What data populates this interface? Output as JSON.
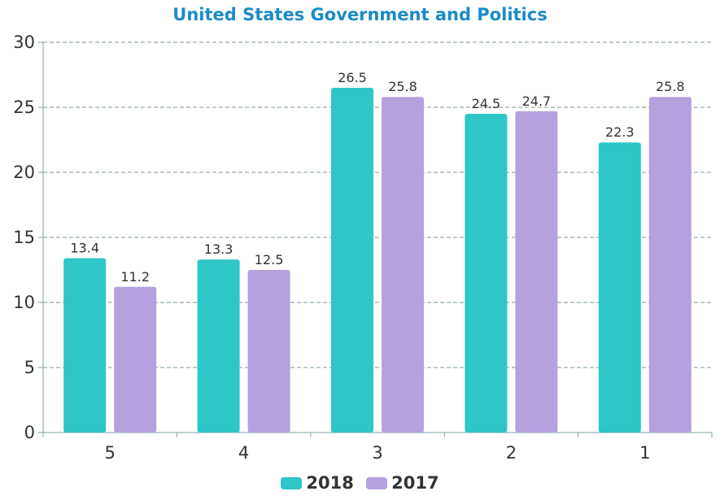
{
  "chart_data": {
    "type": "bar",
    "title": "United States Government and Politics",
    "categories": [
      "5",
      "4",
      "3",
      "2",
      "1"
    ],
    "series": [
      {
        "name": "2018",
        "color": "#2ec6c6",
        "values": [
          13.4,
          13.3,
          26.5,
          24.5,
          22.3
        ]
      },
      {
        "name": "2017",
        "color": "#b5a1de",
        "values": [
          11.2,
          12.5,
          25.8,
          24.7,
          25.8
        ]
      }
    ],
    "ylim": [
      0,
      30
    ],
    "yticks": [
      "0",
      "5",
      "10",
      "15",
      "20",
      "25",
      "30"
    ],
    "grid": true,
    "legend_position": "bottom"
  }
}
